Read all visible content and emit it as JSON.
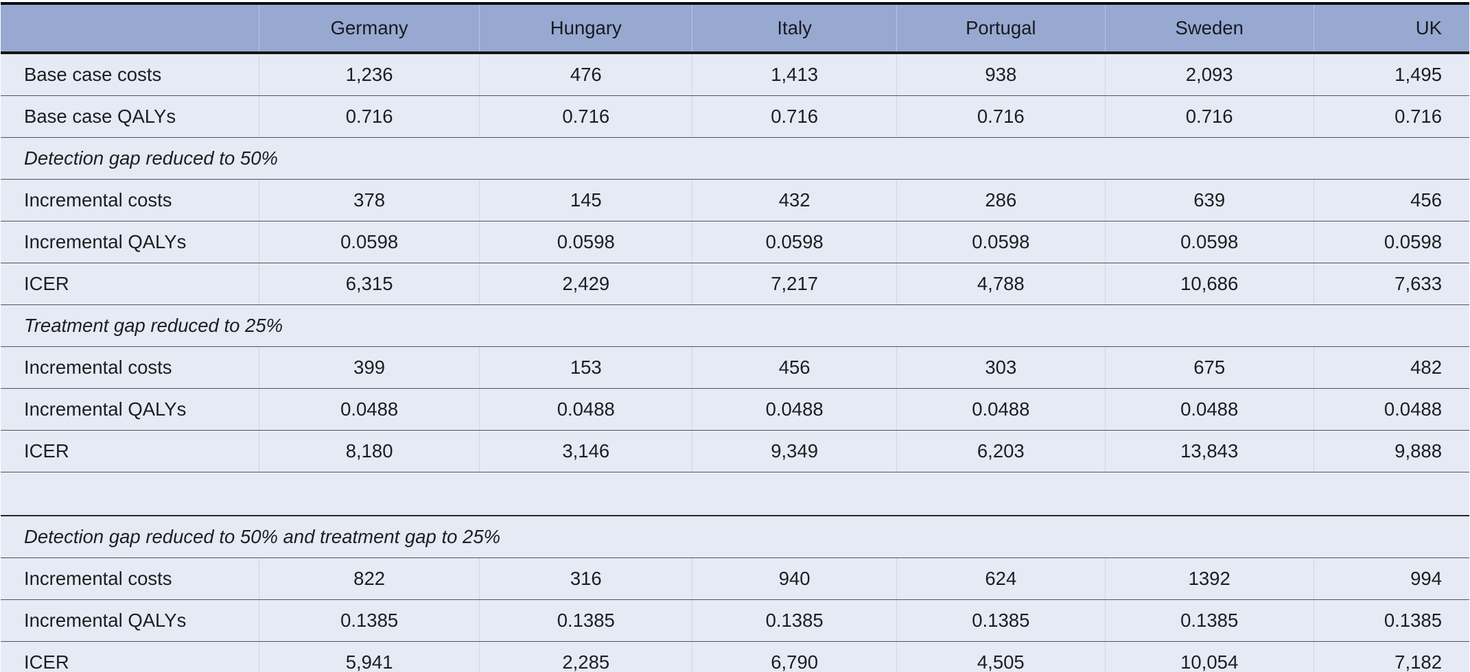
{
  "table": {
    "columns": [
      "",
      "Germany",
      "Hungary",
      "Italy",
      "Portugal",
      "Sweden",
      "UK"
    ],
    "rows": [
      {
        "type": "data",
        "label": "Base case costs",
        "values": [
          "1,236",
          "476",
          "1,413",
          "938",
          "2,093",
          "1,495"
        ]
      },
      {
        "type": "data",
        "label": "Base case QALYs",
        "values": [
          "0.716",
          "0.716",
          "0.716",
          "0.716",
          "0.716",
          "0.716"
        ]
      },
      {
        "type": "section",
        "label": "Detection gap reduced to 50%"
      },
      {
        "type": "data",
        "label": "Incremental costs",
        "values": [
          "378",
          "145",
          "432",
          "286",
          "639",
          "456"
        ]
      },
      {
        "type": "data",
        "label": "Incremental QALYs",
        "values": [
          "0.0598",
          "0.0598",
          "0.0598",
          "0.0598",
          "0.0598",
          "0.0598"
        ]
      },
      {
        "type": "data",
        "label": "ICER",
        "values": [
          "6,315",
          "2,429",
          "7,217",
          "4,788",
          "10,686",
          "7,633"
        ]
      },
      {
        "type": "section",
        "label": "Treatment gap reduced to 25%"
      },
      {
        "type": "data",
        "label": "Incremental costs",
        "values": [
          "399",
          "153",
          "456",
          "303",
          "675",
          "482"
        ]
      },
      {
        "type": "data",
        "label": "Incremental QALYs",
        "values": [
          "0.0488",
          "0.0488",
          "0.0488",
          "0.0488",
          "0.0488",
          "0.0488"
        ]
      },
      {
        "type": "data",
        "label": "ICER",
        "values": [
          "8,180",
          "3,146",
          "9,349",
          "6,203",
          "13,843",
          "9,888"
        ]
      },
      {
        "type": "spacer"
      },
      {
        "type": "section",
        "label": "Detection gap reduced to 50% and treatment gap to 25%"
      },
      {
        "type": "data",
        "label": "Incremental costs",
        "values": [
          "822",
          "316",
          "940",
          "624",
          "1392",
          "994"
        ]
      },
      {
        "type": "data",
        "label": "Incremental QALYs",
        "values": [
          "0.1385",
          "0.1385",
          "0.1385",
          "0.1385",
          "0.1385",
          "0.1385"
        ]
      },
      {
        "type": "data",
        "label": "ICER",
        "values": [
          "5,941",
          "2,285",
          "6,790",
          "4,505",
          "10,054",
          "7,182"
        ]
      }
    ],
    "colors": {
      "header_background": "#97a9d1",
      "row_background": "#e6eaf4",
      "border_dark": "#0c0d0f",
      "row_separator": "#4d525b",
      "text": "#1c1e21"
    }
  }
}
